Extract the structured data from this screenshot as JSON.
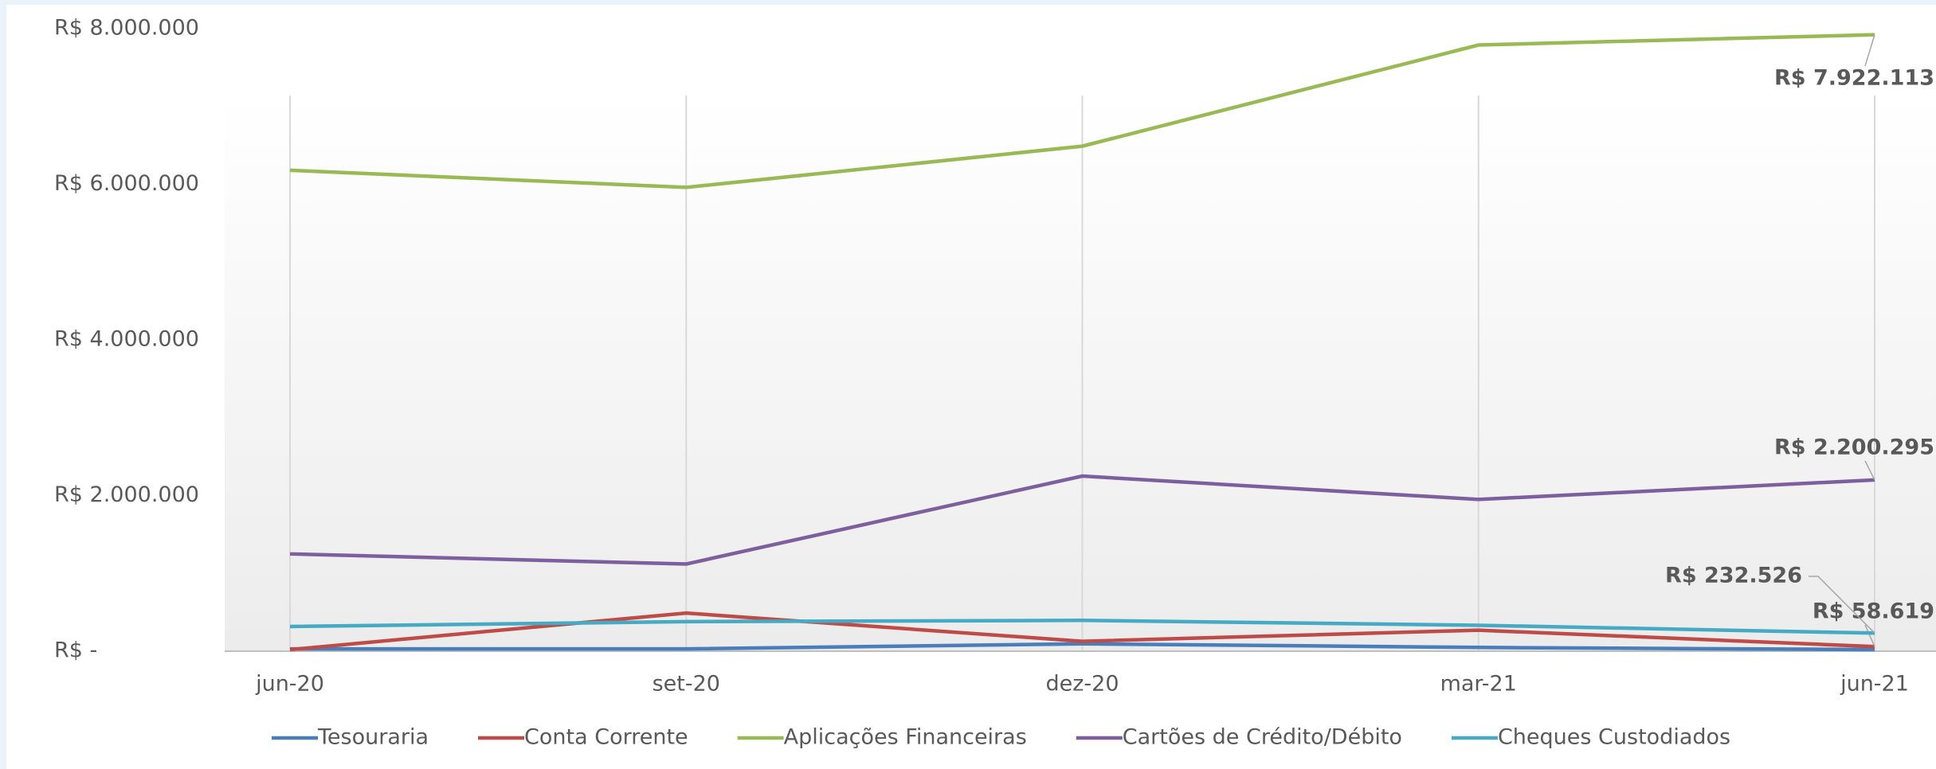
{
  "chart_data": {
    "type": "line",
    "categories": [
      "jun-20",
      "set-20",
      "dez-20",
      "mar-21",
      "jun-21"
    ],
    "series": [
      {
        "name": "Tesouraria",
        "color": "#4a7ebb",
        "values": [
          30000,
          30000,
          95000,
          48000,
          20000
        ]
      },
      {
        "name": "Conta Corrente",
        "color": "#be4b48",
        "values": [
          20000,
          490000,
          127000,
          270000,
          58619
        ],
        "value_labels": [
          null,
          null,
          null,
          null,
          "R$ 58.619"
        ]
      },
      {
        "name": "Aplicações Financeiras",
        "color": "#98b954",
        "values": [
          6180000,
          5960000,
          6490000,
          7790000,
          7922113
        ],
        "value_labels": [
          null,
          null,
          null,
          null,
          "R$ 7.922.113"
        ]
      },
      {
        "name": "Cartões de Crédito/Débito",
        "color": "#7d5fa0",
        "values": [
          1250000,
          1120000,
          2250000,
          1950000,
          2200295
        ],
        "value_labels": [
          null,
          null,
          null,
          null,
          "R$ 2.200.295"
        ]
      },
      {
        "name": "Cheques Custodiados",
        "color": "#46aac5",
        "values": [
          317000,
          380000,
          396000,
          333000,
          232526
        ],
        "value_labels": [
          null,
          null,
          null,
          null,
          "R$ 232.526"
        ]
      }
    ],
    "ylim": [
      0,
      8000000
    ],
    "yticks": [
      {
        "value": 0,
        "label": "R$ -"
      },
      {
        "value": 2000000,
        "label": "R$ 2.000.000"
      },
      {
        "value": 4000000,
        "label": "R$ 4.000.000"
      },
      {
        "value": 6000000,
        "label": "R$ 6.000.000"
      },
      {
        "value": 8000000,
        "label": "R$ 8.000.000"
      }
    ],
    "grid": true,
    "legend": "bottom"
  }
}
